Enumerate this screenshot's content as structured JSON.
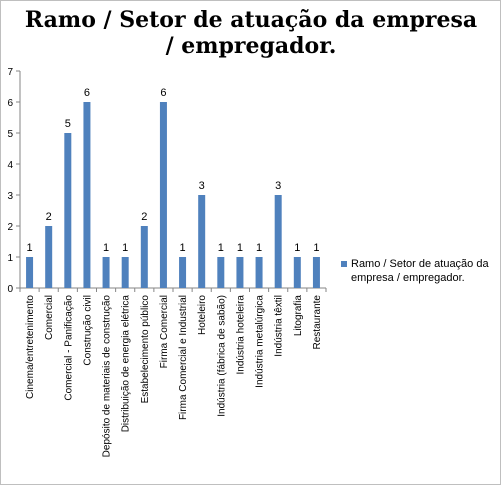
{
  "chart_data": {
    "type": "bar",
    "title": "Ramo / Setor de atuação da empresa / empregador.",
    "categories": [
      "Cinema/entretenimento",
      "Comercial",
      "Comercial - Panificação",
      "Construção civil",
      "Depósito de materiais de construção",
      "Distribuição de energia elétrica",
      "Estabelecimento público",
      "Firma Comercial",
      "Firma Comercial e Industrial",
      "Hoteleiro",
      "Indústria (fábrica de sabão)",
      "Indústria hoteleira",
      "Indústria metalúrgica",
      "Indústria têxtil",
      "Litografia",
      "Restaurante"
    ],
    "series": [
      {
        "name": "Ramo / Setor de atuação da empresa / empregador.",
        "values": [
          1,
          2,
          5,
          6,
          1,
          1,
          2,
          6,
          1,
          3,
          1,
          1,
          1,
          3,
          1,
          1
        ],
        "color": "#4f81bd"
      }
    ],
    "yticks": [
      "0",
      "1",
      "2",
      "3",
      "4",
      "5",
      "6",
      "7"
    ],
    "ylim": [
      0,
      7
    ],
    "grid": false,
    "legend": "right"
  }
}
